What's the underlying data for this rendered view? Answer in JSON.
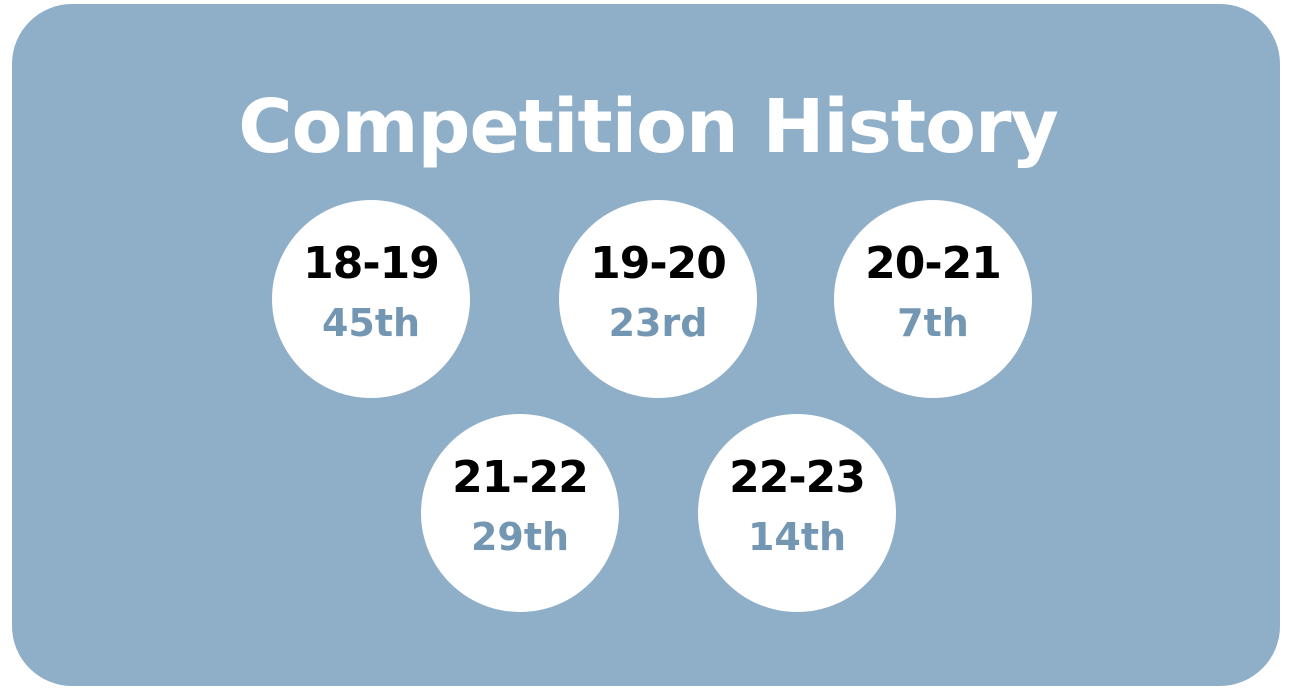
{
  "title": "Competition History",
  "colors": {
    "card_background": "#8fafc8",
    "badge_background": "#ffffff",
    "season_text": "#000000",
    "rank_text": "#7396b3",
    "title_text": "#ffffff"
  },
  "seasons": [
    {
      "season": "18-19",
      "rank": "45th"
    },
    {
      "season": "19-20",
      "rank": "23rd"
    },
    {
      "season": "20-21",
      "rank": "7th"
    },
    {
      "season": "21-22",
      "rank": "29th"
    },
    {
      "season": "22-23",
      "rank": "14th"
    }
  ]
}
